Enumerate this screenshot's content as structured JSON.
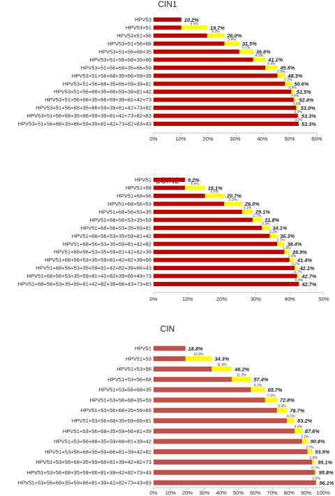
{
  "chart_data": [
    {
      "type": "bar",
      "title": "CIN1",
      "xlim": [
        0,
        60
      ],
      "ticks": [
        "0%",
        "10%",
        "20%",
        "30%",
        "40%",
        "50%",
        "60%"
      ],
      "categories": [
        "HPV53",
        "HPV53+51",
        "HPV53+51+56",
        "HPV53+51+56+68",
        "HPV53+51+56+68+35",
        "HPV53+51+56+68+35+66",
        "HPV53+51+56+68+35+66+59",
        "HPV53+51+56+68+35+66+59+39",
        "HPV53+51+56+68+35+66+59+39+81",
        "HPV53+51+56+68+35+66+59+39+81+42",
        "HPV53+51+56+68+35+66+59+39+81+42+73",
        "HPV53+51+56+68+35+66+59+39+81+42+73+82",
        "HPV53+51+56+68+35+66+59+39+81+42+73+82+83",
        "HPV53+51+56+68+35+66+59+39+81+42+73+82+83+43"
      ],
      "values": [
        10.2,
        19.7,
        26.0,
        31.5,
        36.6,
        41.1,
        45.5,
        48.3,
        50.6,
        51.5,
        52.4,
        53.0,
        53.3,
        53.3
      ],
      "value_labels": [
        "10.2%",
        "19.7%",
        "26.0%",
        "31.5%",
        "36.6%",
        "41.1%",
        "45.5%",
        "48.3%",
        "50.6%",
        "51.5%",
        "52.4%",
        "53.0%",
        "53.3%",
        "53.3%"
      ],
      "increments": [
        null,
        "9.5%",
        "6.3%",
        "5.4%",
        "5.1%",
        "4.5%",
        "4.4%",
        "2.9%",
        "2.2%",
        "0.9%",
        "0.9%",
        "0.6%",
        "0.3%",
        "0.0%"
      ]
    },
    {
      "type": "bar",
      "title": "≥CIN2",
      "xlim": [
        0,
        50
      ],
      "ticks": [
        "0%",
        "10%",
        "20%",
        "30%",
        "40%",
        "50%"
      ],
      "categories": [
        "HPV51",
        "HPV51+68",
        "HPV51+68+56",
        "HPV51+68+56+53",
        "HPV51+68+56+53+35",
        "HPV51+68+56+53+35+59",
        "HPV51+68+56+53+35+59+81",
        "HPV51+68+56+53+35+59+81+42",
        "HPV51+68+56+53+35+59+81+42+82",
        "HPV51+68+56+53+35+59+81+42+82+39",
        "HPV51+68+56+53+35+59+81+42+82+39+66",
        "HPV51+68+56+53+35+59+81+42+82+39+66+43",
        "HPV51+68+56+53+35+59+81+42+82+39+66+43+73",
        "HPV51+68+56+53+35+59+81+42+82+39+66+43+73+83"
      ],
      "values": [
        9.2,
        15.1,
        20.7,
        26.0,
        29.1,
        31.8,
        34.1,
        36.3,
        38.4,
        39.9,
        41.4,
        42.1,
        42.7,
        42.7
      ],
      "value_labels": [
        "9.2%",
        "15.1%",
        "20.7%",
        "26.0%",
        "29.1%",
        "31.8%",
        "34.1%",
        "36.3%",
        "38.4%",
        "39.9%",
        "41.4%",
        "42.1%",
        "42.7%",
        "42.7%"
      ],
      "increments": [
        null,
        "5.9%",
        "5.6%",
        "5.3%",
        "3.1%",
        "2.7%",
        "2.3%",
        "2.2%",
        "2.1%",
        "1.6%",
        "1.4%",
        "0.7%",
        "0.7%",
        "0.0%"
      ]
    },
    {
      "type": "bar",
      "title": "CIN",
      "xlim": [
        0,
        100
      ],
      "ticks": [
        "0%",
        "10%",
        "20%",
        "30%",
        "40%",
        "50%",
        "60%",
        "70%",
        "80%",
        "90%",
        "100%"
      ],
      "categories": [
        "HPV51",
        "HPV51+53",
        "HPV51+53+56",
        "HPV51+53+56+68",
        "HPV51+53+56+68+35",
        "HPV51+53+56+68+35+59",
        "HPV51+53+56+68+35+59+66",
        "HPV51+53+56+68+35+59+66+81",
        "HPV51+53+56+68+35+59+66+81+39",
        "HPV51+53+56+68+35+59+66+81+39+42",
        "HPV51+53+56+68+35+59+66+81+39+42+82",
        "HPV51+53+56+68+35+59+66+81+39+42+82+73",
        "HPV51+53+56+68+35+59+66+81+39+42+82+73+43",
        "HPV51+53+56+68+35+59+66+81+39+42+82+73+43+83"
      ],
      "values": [
        18.8,
        34.3,
        46.2,
        57.4,
        65.7,
        72.8,
        78.7,
        83.2,
        87.6,
        90.8,
        93.5,
        95.1,
        95.8,
        96.1
      ],
      "value_labels": [
        "18.8%",
        "34.3%",
        "46.2%",
        "57.4%",
        "65.7%",
        "72.8%",
        "78.7%",
        "83.2%",
        "87.6%",
        "90.8%",
        "93.5%",
        "95.1%",
        "95.8%",
        "96.1%"
      ],
      "increments": [
        null,
        "15.5%",
        "11.9%",
        "11.3%",
        "8.2%",
        "7.1%",
        "5.9%",
        "4.5%",
        "4.4%",
        "3.1%",
        "2.7%",
        "1.6%",
        "0.7%",
        "0.3%"
      ]
    }
  ],
  "colors": {
    "cin1_bar": "#c00000",
    "cin2_bar": "#c00000",
    "cin_bar": "#c0504d",
    "increment": "#ffff00",
    "axis": "#bfbfbf"
  }
}
